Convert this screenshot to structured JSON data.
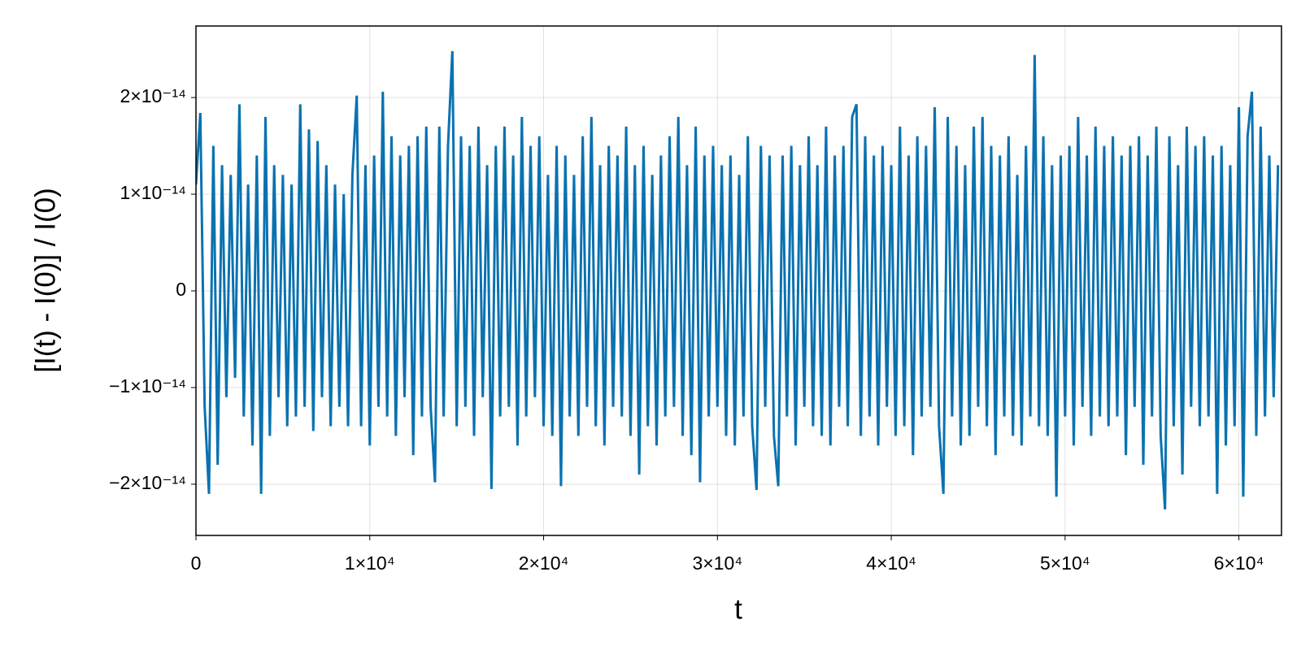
{
  "chart_data": {
    "type": "line",
    "x_label": "t",
    "y_label": "[I(t) - I(0)] / I(0)",
    "xlim": [
      0,
      62450
    ],
    "ylim": [
      -2.53e-14,
      2.74e-14
    ],
    "xticks": [
      0,
      {
        "value": 10000,
        "label": "1×10⁴"
      },
      {
        "value": 20000,
        "label": "2×10⁴"
      },
      {
        "value": 30000,
        "label": "3×10⁴"
      },
      {
        "value": 40000,
        "label": "4×10⁴"
      },
      {
        "value": 50000,
        "label": "5×10⁴"
      },
      {
        "value": 60000,
        "label": "6×10⁴"
      }
    ],
    "yticks": [
      {
        "value": -2e-14,
        "label": "−2×10⁻¹⁴"
      },
      {
        "value": -1e-14,
        "label": "−1×10⁻¹⁴"
      },
      0,
      {
        "value": 1e-14,
        "label": "1×10⁻¹⁴"
      },
      {
        "value": 2e-14,
        "label": "2×10⁻¹⁴"
      }
    ],
    "grid": true,
    "x": [
      0,
      250,
      500,
      750,
      1000,
      1250,
      1500,
      1750,
      2000,
      2250,
      2500,
      2750,
      3000,
      3250,
      3500,
      3750,
      4000,
      4250,
      4500,
      4750,
      5000,
      5250,
      5500,
      5750,
      6000,
      6250,
      6500,
      6750,
      7000,
      7250,
      7500,
      7750,
      8000,
      8250,
      8500,
      8750,
      9000,
      9250,
      9500,
      9750,
      10000,
      10250,
      10500,
      10750,
      11000,
      11250,
      11500,
      11750,
      12000,
      12250,
      12500,
      12750,
      13000,
      13250,
      13500,
      13750,
      14000,
      14250,
      14500,
      14750,
      15000,
      15250,
      15500,
      15750,
      16000,
      16250,
      16500,
      16750,
      17000,
      17250,
      17500,
      17750,
      18000,
      18250,
      18500,
      18750,
      19000,
      19250,
      19500,
      19750,
      20000,
      20250,
      20500,
      20750,
      21000,
      21250,
      21500,
      21750,
      22000,
      22250,
      22500,
      22750,
      23000,
      23250,
      23500,
      23750,
      24000,
      24250,
      24500,
      24750,
      25000,
      25250,
      25500,
      25750,
      26000,
      26250,
      26500,
      26750,
      27000,
      27250,
      27500,
      27750,
      28000,
      28250,
      28500,
      28750,
      29000,
      29250,
      29500,
      29750,
      30000,
      30250,
      30500,
      30750,
      31000,
      31250,
      31500,
      31750,
      32000,
      32250,
      32500,
      32750,
      33000,
      33250,
      33500,
      33750,
      34000,
      34250,
      34500,
      34750,
      35000,
      35250,
      35500,
      35750,
      36000,
      36250,
      36500,
      36750,
      37000,
      37250,
      37500,
      37750,
      38000,
      38250,
      38500,
      38750,
      39000,
      39250,
      39500,
      39750,
      40000,
      40250,
      40500,
      40750,
      41000,
      41250,
      41500,
      41750,
      42000,
      42250,
      42500,
      42750,
      43000,
      43250,
      43500,
      43750,
      44000,
      44250,
      44500,
      44750,
      45000,
      45250,
      45500,
      45750,
      46000,
      46250,
      46500,
      46750,
      47000,
      47250,
      47500,
      47750,
      48000,
      48250,
      48500,
      48750,
      49000,
      49250,
      49500,
      49750,
      50000,
      50250,
      50500,
      50750,
      51000,
      51250,
      51500,
      51750,
      52000,
      52250,
      52500,
      52750,
      53000,
      53250,
      53500,
      53750,
      54000,
      54250,
      54500,
      54750,
      55000,
      55250,
      55500,
      55750,
      56000,
      56250,
      56500,
      56750,
      57000,
      57250,
      57500,
      57750,
      58000,
      58250,
      58500,
      58750,
      59000,
      59250,
      59500,
      59750,
      60000,
      60250,
      60500,
      60750,
      61000,
      61250,
      61500,
      61750,
      62000,
      62250
    ],
    "series": [
      {
        "name": "I",
        "color": "#0a72b0",
        "values": [
          1.1e-14,
          1.84e-14,
          -1.2e-14,
          -2.1e-14,
          1.5e-14,
          -1.8e-14,
          1.3e-14,
          -1.1e-14,
          1.2e-14,
          -9e-15,
          1.93e-14,
          -1.3e-14,
          1.1e-14,
          -1.6e-14,
          1.4e-14,
          -2.1e-14,
          1.8e-14,
          -1.5e-14,
          1.3e-14,
          -1.1e-14,
          1.2e-14,
          -1.4e-14,
          1.1e-14,
          -1.3e-14,
          1.93e-14,
          -1.2e-14,
          1.67e-14,
          -1.45e-14,
          1.55e-14,
          -1.1e-14,
          1.3e-14,
          -1.4e-14,
          1.1e-14,
          -1.2e-14,
          1e-14,
          -1.4e-14,
          1.2e-14,
          2.02e-14,
          -1.4e-14,
          1.3e-14,
          -1.6e-14,
          1.4e-14,
          -1.2e-14,
          2.06e-14,
          -1.3e-14,
          1.6e-14,
          -1.5e-14,
          1.4e-14,
          -1.1e-14,
          1.5e-14,
          -1.7e-14,
          1.6e-14,
          -1.3e-14,
          1.7e-14,
          -1.2e-14,
          -1.98e-14,
          1.7e-14,
          -1.3e-14,
          1.5e-14,
          2.48e-14,
          -1.4e-14,
          1.6e-14,
          -1.2e-14,
          1.5e-14,
          -1.5e-14,
          1.7e-14,
          -1.1e-14,
          1.3e-14,
          -2.05e-14,
          1.5e-14,
          -1.3e-14,
          1.7e-14,
          -1.2e-14,
          1.4e-14,
          -1.6e-14,
          1.8e-14,
          -1.3e-14,
          1.5e-14,
          -1.1e-14,
          1.6e-14,
          -1.4e-14,
          1.2e-14,
          -1.5e-14,
          1.5e-14,
          -2.02e-14,
          1.4e-14,
          -1.3e-14,
          1.2e-14,
          -1.5e-14,
          1.6e-14,
          -1.2e-14,
          1.8e-14,
          -1.4e-14,
          1.3e-14,
          -1.6e-14,
          1.5e-14,
          -1.2e-14,
          1.4e-14,
          -1.3e-14,
          1.7e-14,
          -1.5e-14,
          1.3e-14,
          -1.9e-14,
          1.5e-14,
          -1.4e-14,
          1.2e-14,
          -1.6e-14,
          1.4e-14,
          -1.3e-14,
          1.6e-14,
          -1.2e-14,
          1.8e-14,
          -1.5e-14,
          1.3e-14,
          -1.7e-14,
          1.7e-14,
          -1.98e-14,
          1.4e-14,
          -1.3e-14,
          1.5e-14,
          -1.2e-14,
          1.3e-14,
          -1.5e-14,
          1.4e-14,
          -1.6e-14,
          1.2e-14,
          -1.3e-14,
          1.6e-14,
          -1.4e-14,
          -2.06e-14,
          1.5e-14,
          -1.2e-14,
          1.4e-14,
          -1.5e-14,
          -2.02e-14,
          1.4e-14,
          -1.3e-14,
          1.5e-14,
          -1.6e-14,
          1.3e-14,
          -1.2e-14,
          1.6e-14,
          -1.4e-14,
          1.3e-14,
          -1.5e-14,
          1.7e-14,
          -1.6e-14,
          1.4e-14,
          -1.2e-14,
          1.5e-14,
          -1.4e-14,
          1.8e-14,
          1.93e-14,
          -1.5e-14,
          1.6e-14,
          -1.3e-14,
          1.4e-14,
          -1.6e-14,
          1.5e-14,
          -1.2e-14,
          1.3e-14,
          -1.5e-14,
          1.7e-14,
          -1.4e-14,
          1.4e-14,
          -1.7e-14,
          1.6e-14,
          -1.3e-14,
          1.5e-14,
          -1.2e-14,
          1.9e-14,
          -1.4e-14,
          -2.1e-14,
          1.8e-14,
          -1.3e-14,
          1.5e-14,
          -1.6e-14,
          1.3e-14,
          -1.5e-14,
          1.7e-14,
          -1.2e-14,
          1.8e-14,
          -1.4e-14,
          1.5e-14,
          -1.7e-14,
          1.4e-14,
          -1.3e-14,
          1.6e-14,
          -1.5e-14,
          1.2e-14,
          -1.6e-14,
          1.5e-14,
          -1.3e-14,
          2.44e-14,
          -1.4e-14,
          1.6e-14,
          -1.5e-14,
          1.3e-14,
          -2.13e-14,
          1.4e-14,
          -1.3e-14,
          1.5e-14,
          -1.6e-14,
          1.8e-14,
          -1.2e-14,
          1.4e-14,
          -1.5e-14,
          1.7e-14,
          -1.3e-14,
          1.5e-14,
          -1.4e-14,
          1.6e-14,
          -1.3e-14,
          1.4e-14,
          -1.7e-14,
          1.5e-14,
          -1.2e-14,
          1.6e-14,
          -1.8e-14,
          1.4e-14,
          -1.3e-14,
          1.7e-14,
          -1.5e-14,
          -2.26e-14,
          1.6e-14,
          -1.4e-14,
          1.3e-14,
          -1.9e-14,
          1.7e-14,
          -1.2e-14,
          1.5e-14,
          -1.4e-14,
          1.6e-14,
          -1.3e-14,
          1.4e-14,
          -2.1e-14,
          1.5e-14,
          -1.6e-14,
          1.3e-14,
          -1.4e-14,
          1.9e-14,
          -2.13e-14,
          1.6e-14,
          2.06e-14,
          -1.5e-14,
          1.7e-14,
          -1.3e-14,
          1.4e-14,
          -1.1e-14,
          1.3e-14
        ]
      }
    ]
  }
}
